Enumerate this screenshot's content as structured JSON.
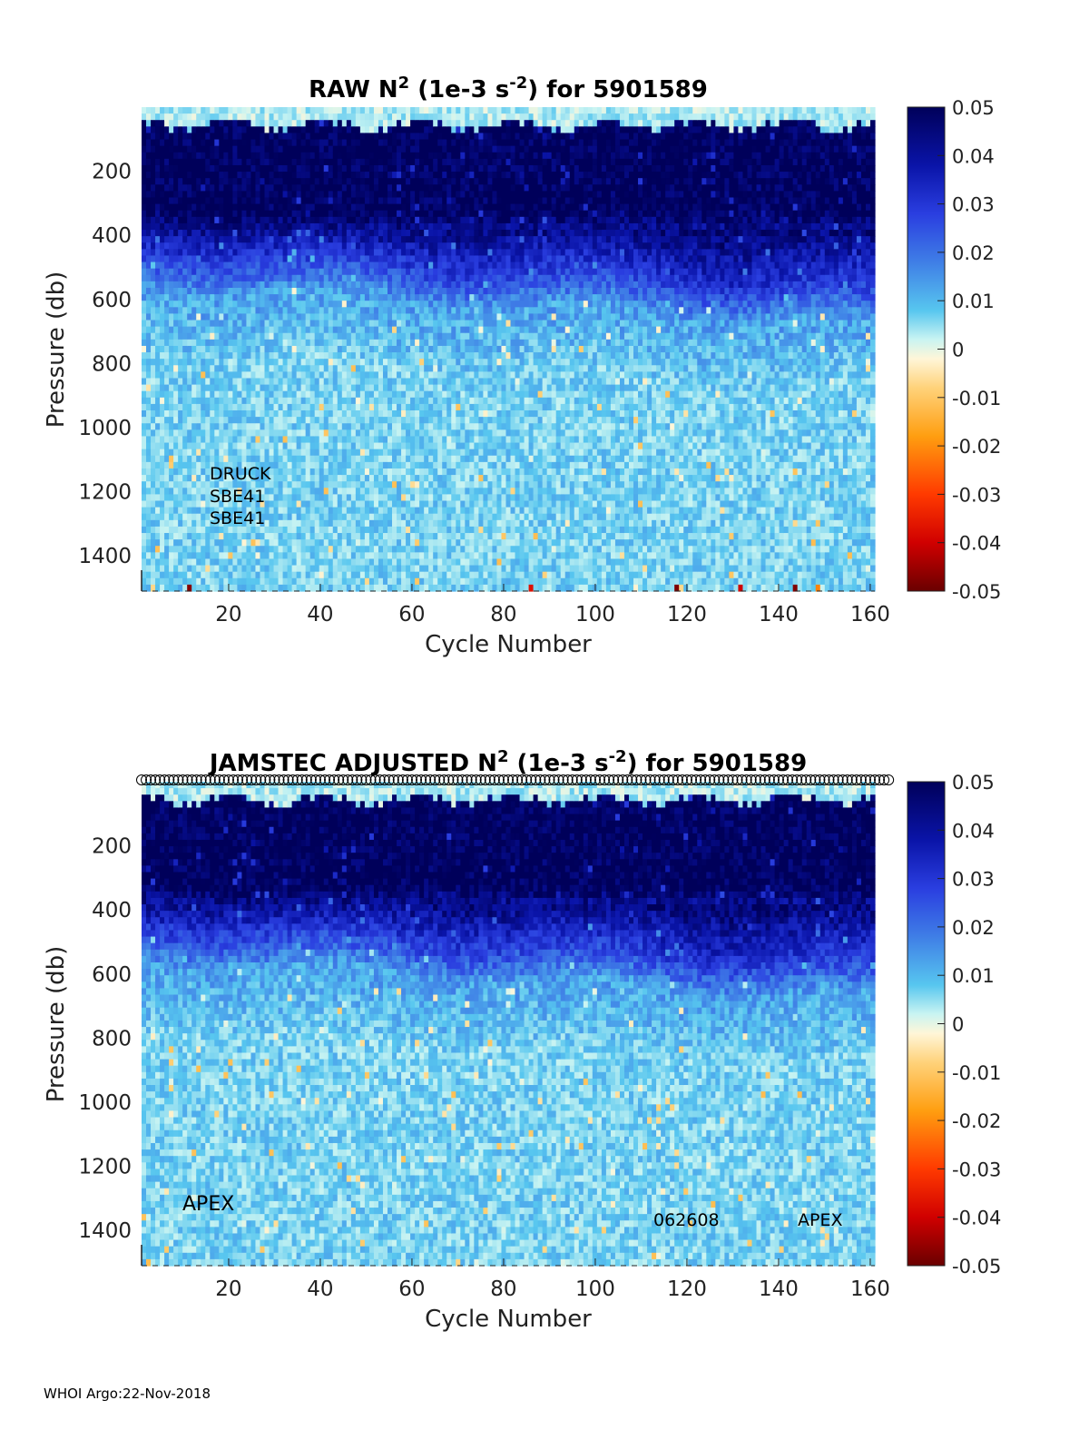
{
  "footer": "WHOI Argo:22-Nov-2018",
  "colorbar": {
    "ticks": [
      "0.05",
      "0.04",
      "0.03",
      "0.02",
      "0.01",
      "0",
      "-0.01",
      "-0.02",
      "-0.03",
      "-0.04",
      "-0.05"
    ],
    "range": [
      -0.05,
      0.05
    ]
  },
  "chart_data": [
    {
      "type": "heatmap",
      "title": {
        "main": "RAW N",
        "sup1": "2",
        "mid": " (1e-3 s",
        "sup2": "-2",
        "end": ") for 5901589"
      },
      "xlabel": "Cycle Number",
      "ylabel": "Pressure (db)",
      "xlim": [
        1,
        161
      ],
      "ylim": [
        0,
        1510
      ],
      "y_reversed": true,
      "xticks": [
        "20",
        "40",
        "60",
        "80",
        "100",
        "120",
        "140",
        "160"
      ],
      "yticks": [
        "200",
        "400",
        "600",
        "800",
        "1000",
        "1200",
        "1400"
      ],
      "colormap_range": [
        -0.05,
        0.05
      ],
      "profile_depth_layers": [
        {
          "pressure_range": [
            0,
            50
          ],
          "typical_value": 0.0
        },
        {
          "pressure_range": [
            50,
            380
          ],
          "typical_value": 0.05
        },
        {
          "pressure_range": [
            380,
            520
          ],
          "typical_value": 0.03
        },
        {
          "pressure_range": [
            520,
            700
          ],
          "typical_value": 0.015
        },
        {
          "pressure_range": [
            700,
            1510
          ],
          "typical_value": 0.008
        }
      ],
      "annotations": [
        "DRUCK",
        "SBE41",
        "SBE41"
      ]
    },
    {
      "type": "heatmap",
      "title": {
        "main": "JAMSTEC  ADJUSTED N",
        "sup1": "2",
        "mid": " (1e-3 s",
        "sup2": "-2",
        "end": ") for 5901589"
      },
      "xlabel": "Cycle Number",
      "ylabel": "Pressure (db)",
      "xlim": [
        1,
        161
      ],
      "ylim": [
        0,
        1510
      ],
      "y_reversed": true,
      "xticks": [
        "20",
        "40",
        "60",
        "80",
        "100",
        "120",
        "140",
        "160"
      ],
      "yticks": [
        "200",
        "400",
        "600",
        "800",
        "1000",
        "1200",
        "1400"
      ],
      "colormap_range": [
        -0.05,
        0.05
      ],
      "profile_depth_layers": [
        {
          "pressure_range": [
            0,
            50
          ],
          "typical_value": 0.0
        },
        {
          "pressure_range": [
            50,
            380
          ],
          "typical_value": 0.05
        },
        {
          "pressure_range": [
            380,
            520
          ],
          "typical_value": 0.03
        },
        {
          "pressure_range": [
            520,
            700
          ],
          "typical_value": 0.015
        },
        {
          "pressure_range": [
            700,
            1510
          ],
          "typical_value": 0.008
        }
      ],
      "annotations": [
        "APEX",
        "062608",
        "APEX"
      ]
    }
  ]
}
